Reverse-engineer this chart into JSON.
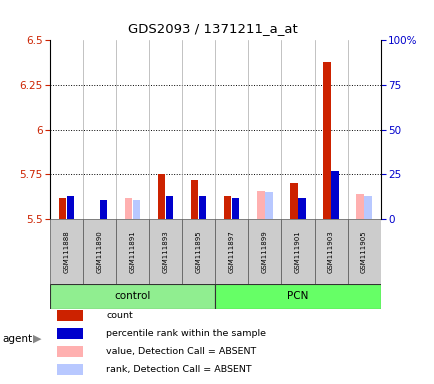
{
  "title": "GDS2093 / 1371211_a_at",
  "samples": [
    "GSM111888",
    "GSM111890",
    "GSM111891",
    "GSM111893",
    "GSM111895",
    "GSM111897",
    "GSM111899",
    "GSM111901",
    "GSM111903",
    "GSM111905"
  ],
  "ylim_left": [
    5.5,
    6.5
  ],
  "ylim_right": [
    0,
    100
  ],
  "yticks_left": [
    5.5,
    5.75,
    6.0,
    6.25,
    6.5
  ],
  "yticks_right": [
    0,
    25,
    50,
    75,
    100
  ],
  "ytick_labels_left": [
    "5.5",
    "5.75",
    "6",
    "6.25",
    "6.5"
  ],
  "ytick_labels_right": [
    "0",
    "25",
    "50",
    "75",
    "100%"
  ],
  "dotted_lines": [
    5.75,
    6.0,
    6.25
  ],
  "color_red": "#CC2200",
  "color_blue": "#0000CC",
  "color_pink": "#FFB0B0",
  "color_lightblue": "#B8C8FF",
  "color_green_control": "#90EE90",
  "color_green_pcn": "#66FF66",
  "bar_bottom": 5.5,
  "red_values": [
    5.62,
    5.5,
    5.5,
    5.75,
    5.72,
    5.63,
    5.5,
    5.7,
    6.38,
    5.5
  ],
  "blue_values": [
    5.63,
    5.61,
    5.5,
    5.63,
    5.63,
    5.62,
    5.5,
    5.62,
    5.77,
    5.5
  ],
  "pink_values": [
    5.5,
    5.5,
    5.62,
    5.5,
    5.5,
    5.5,
    5.66,
    5.5,
    5.5,
    5.64
  ],
  "lblue_values": [
    5.5,
    5.5,
    5.61,
    5.5,
    5.5,
    5.5,
    5.65,
    5.5,
    5.5,
    5.63
  ],
  "has_red": [
    true,
    true,
    false,
    true,
    true,
    true,
    false,
    true,
    true,
    false
  ],
  "has_blue": [
    true,
    true,
    false,
    true,
    true,
    true,
    false,
    true,
    true,
    false
  ],
  "has_pink": [
    false,
    false,
    true,
    false,
    false,
    false,
    true,
    false,
    false,
    true
  ],
  "has_lblue": [
    false,
    false,
    true,
    false,
    false,
    false,
    true,
    false,
    false,
    true
  ],
  "control_label": "control",
  "pcn_label": "PCN",
  "legend_items": [
    {
      "color": "#CC2200",
      "label": "count"
    },
    {
      "color": "#0000CC",
      "label": "percentile rank within the sample"
    },
    {
      "color": "#FFB0B0",
      "label": "value, Detection Call = ABSENT"
    },
    {
      "color": "#B8C8FF",
      "label": "rank, Detection Call = ABSENT"
    }
  ],
  "agent_label": "agent"
}
